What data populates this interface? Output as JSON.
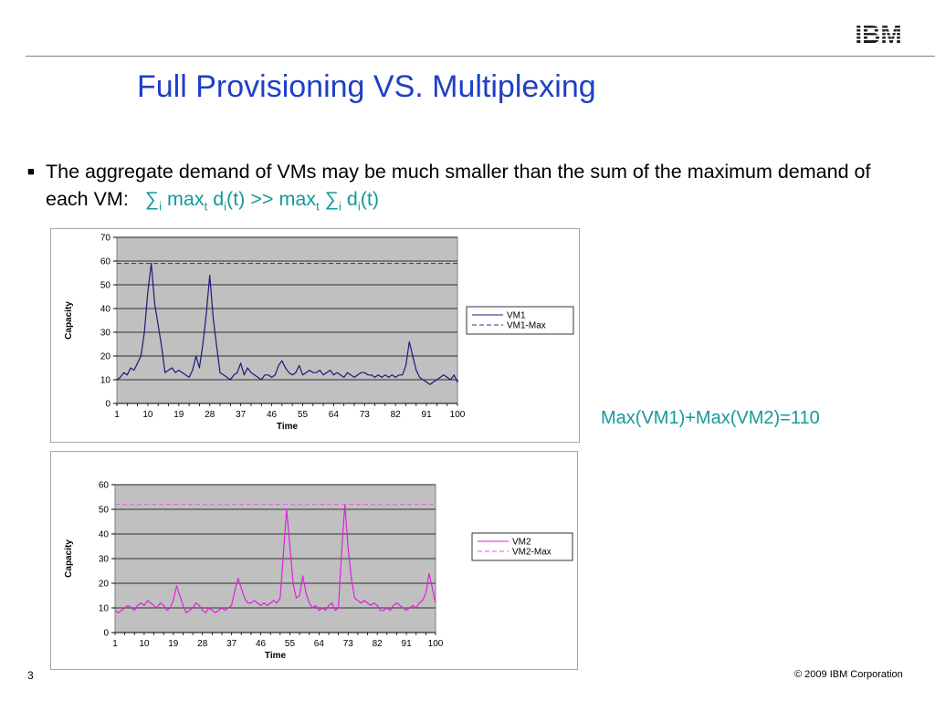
{
  "logo": {
    "text": "IBM",
    "color": "#1a1a1a"
  },
  "slide": {
    "title": "Full Provisioning VS. Multiplexing",
    "bullet": {
      "text_part1": "The aggregate demand of VMs may be much smaller than the sum of the maximum demand of each VM:",
      "formula": {
        "sum": "∑",
        "i": "i",
        "max": "max",
        "t": "t",
        "d": "d",
        "arg": "(t)",
        "gg": ">>"
      }
    },
    "note": "Max(VM1)+Max(VM2)=110",
    "page_number": "3",
    "copyright": "© 2009 IBM Corporation",
    "accent_color": "#1f3fc7",
    "formula_color": "#159999"
  },
  "chart_data": [
    {
      "type": "line",
      "xlabel": "Time",
      "ylabel": "Capacity",
      "ylim": [
        0,
        70
      ],
      "yticks": [
        0,
        10,
        20,
        30,
        40,
        50,
        60,
        70
      ],
      "xlim": [
        1,
        100
      ],
      "xticks": [
        1,
        10,
        19,
        28,
        37,
        46,
        55,
        64,
        73,
        82,
        91,
        100
      ],
      "grid": true,
      "plot_background": "#c0c0c0",
      "legend": "right",
      "x": [
        1,
        2,
        3,
        4,
        5,
        6,
        7,
        8,
        9,
        10,
        11,
        12,
        13,
        14,
        15,
        16,
        17,
        18,
        19,
        20,
        21,
        22,
        23,
        24,
        25,
        26,
        27,
        28,
        29,
        30,
        31,
        32,
        33,
        34,
        35,
        36,
        37,
        38,
        39,
        40,
        41,
        42,
        43,
        44,
        45,
        46,
        47,
        48,
        49,
        50,
        51,
        52,
        53,
        54,
        55,
        56,
        57,
        58,
        59,
        60,
        61,
        62,
        63,
        64,
        65,
        66,
        67,
        68,
        69,
        70,
        71,
        72,
        73,
        74,
        75,
        76,
        77,
        78,
        79,
        80,
        81,
        82,
        83,
        84,
        85,
        86,
        87,
        88,
        89,
        90,
        91,
        92,
        93,
        94,
        95,
        96,
        97,
        98,
        99,
        100,
        101
      ],
      "series": [
        {
          "name": "VM1",
          "color": "#1a1a7a",
          "dash": "solid",
          "values": [
            10,
            11,
            13,
            12,
            15,
            14,
            17,
            20,
            30,
            47,
            59,
            42,
            33,
            24,
            13,
            14,
            15,
            13,
            14,
            13,
            12,
            11,
            14,
            20,
            15,
            25,
            38,
            54,
            36,
            24,
            13,
            12,
            11,
            10,
            12,
            13,
            17,
            12,
            15,
            13,
            12,
            11,
            10,
            12,
            12,
            11,
            12,
            16,
            18,
            15,
            13,
            12,
            13,
            16,
            12,
            13,
            14,
            13,
            13,
            14,
            12,
            13,
            14,
            12,
            13,
            12,
            11,
            13,
            12,
            11,
            12,
            13,
            13,
            12,
            12,
            11,
            12,
            11,
            12,
            11,
            12,
            11,
            12,
            12,
            16,
            26,
            20,
            14,
            11,
            10,
            9,
            8,
            9,
            10,
            11,
            12,
            11,
            10,
            12,
            9,
            10
          ]
        },
        {
          "name": "VM1-Max",
          "color": "#2d2d8f",
          "dash": "dashed",
          "constant": 59
        }
      ]
    },
    {
      "type": "line",
      "xlabel": "Time",
      "ylabel": "Capacity",
      "ylim": [
        0,
        60
      ],
      "yticks": [
        0,
        10,
        20,
        30,
        40,
        50,
        60
      ],
      "xlim": [
        1,
        100
      ],
      "xticks": [
        1,
        10,
        19,
        28,
        37,
        46,
        55,
        64,
        73,
        82,
        91,
        100
      ],
      "grid": true,
      "plot_background": "#c0c0c0",
      "legend": "right",
      "x": [
        1,
        2,
        3,
        4,
        5,
        6,
        7,
        8,
        9,
        10,
        11,
        12,
        13,
        14,
        15,
        16,
        17,
        18,
        19,
        20,
        21,
        22,
        23,
        24,
        25,
        26,
        27,
        28,
        29,
        30,
        31,
        32,
        33,
        34,
        35,
        36,
        37,
        38,
        39,
        40,
        41,
        42,
        43,
        44,
        45,
        46,
        47,
        48,
        49,
        50,
        51,
        52,
        53,
        54,
        55,
        56,
        57,
        58,
        59,
        60,
        61,
        62,
        63,
        64,
        65,
        66,
        67,
        68,
        69,
        70,
        71,
        72,
        73,
        74,
        75,
        76,
        77,
        78,
        79,
        80,
        81,
        82,
        83,
        84,
        85,
        86,
        87,
        88,
        89,
        90,
        91,
        92,
        93,
        94,
        95,
        96,
        97,
        98,
        99,
        100,
        101
      ],
      "series": [
        {
          "name": "VM2",
          "color": "#e020e0",
          "dash": "solid",
          "values": [
            9,
            8,
            9,
            10,
            11,
            10,
            9,
            11,
            12,
            11,
            13,
            12,
            11,
            10,
            12,
            11,
            9,
            10,
            13,
            19,
            15,
            11,
            8,
            9,
            10,
            12,
            11,
            9,
            8,
            10,
            9,
            8,
            9,
            10,
            9,
            10,
            11,
            17,
            22,
            18,
            14,
            12,
            12,
            13,
            12,
            11,
            12,
            11,
            12,
            13,
            12,
            14,
            32,
            50,
            35,
            20,
            14,
            15,
            23,
            16,
            12,
            10,
            11,
            9,
            10,
            9,
            11,
            12,
            9,
            10,
            33,
            52,
            34,
            22,
            14,
            13,
            12,
            13,
            12,
            11,
            12,
            11,
            9,
            9,
            10,
            9,
            11,
            12,
            11,
            10,
            9,
            10,
            11,
            10,
            12,
            13,
            16,
            24,
            18,
            12,
            12
          ]
        },
        {
          "name": "VM2-Max",
          "color": "#e85ce8",
          "dash": "dashed",
          "constant": 52
        }
      ]
    }
  ]
}
